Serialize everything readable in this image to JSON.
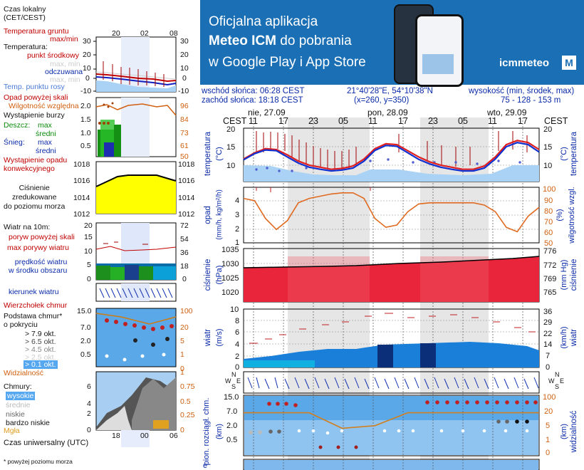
{
  "legend": {
    "local_time": "Czas lokalny\n(CET/CEST)",
    "local_ticks": [
      "20",
      "02",
      "08"
    ],
    "utc_time": "Czas uniwersalny (UTC)",
    "utc_ticks": [
      "18",
      "00",
      "06"
    ],
    "footnote": "* powyżej poziomu morza",
    "soil_temp": "Temperatura gruntu",
    "max_min": "max/min",
    "temperature": "Temperatura:",
    "mid_point": "punkt środkowy",
    "max_min_gray": "max, min",
    "feels": "odczuwana",
    "dew": "Temp. punktu rosy",
    "t_ticks_l": [
      "30",
      "20",
      "10",
      "0",
      "-10"
    ],
    "t_ticks_r": [
      "30",
      "20",
      "10",
      "0",
      "-10"
    ],
    "precip_above": "Opad powyżej skali",
    "rel_hum": "Wilgotność względna",
    "storm": "Wystąpienie burzy",
    "rain": "Deszcz:",
    "snow": "Śnieg:",
    "max": "max",
    "mean": "średni",
    "precip_occ": "Wystąpienie opadu\nkonwekcyjnego",
    "p_ticks_l": [
      "2.0",
      "1.5",
      "1.0",
      "0.5"
    ],
    "h_ticks_r": [
      "96",
      "84",
      "73",
      "61",
      "50"
    ],
    "pressure": "Ciśnienie\nzredukowane\ndo poziomu morza",
    "pr_ticks": [
      "1018",
      "1016",
      "1014",
      "1012"
    ],
    "wind_10m": "Wiatr na 10m:",
    "gust_above": "poryw powyżej skali",
    "max_gust": "max porywy wiatru",
    "mean_wind": "prędkość wiatru\nw środku obszaru",
    "w_ticks_l": [
      "20",
      "15",
      "10",
      "5"
    ],
    "w_ticks_r": [
      "72",
      "54",
      "36",
      "18"
    ],
    "wind_dir": "kierunek wiatru",
    "cloud_top": "Wierzchołek chmur",
    "cloud_base": "Podstawa chmur*\no pokryciu",
    "okt": [
      "> 7.9 okt.",
      "> 6.5 okt.",
      "> 4.5 okt.",
      "> 2.5 okt.",
      "> 0.1 okt."
    ],
    "c_ticks_l": [
      "15.0",
      "7.0",
      "2.0",
      "0.5"
    ],
    "c_ticks_r": [
      "100",
      "20",
      "5",
      "1"
    ],
    "visibility": "Widzialność",
    "clouds": "Chmury:",
    "high": "wysokie",
    "middle": "średnie",
    "low": "niskie",
    "very_low": "bardzo niskie",
    "fog": "Mgła",
    "cl_ticks_l": [
      "6",
      "4",
      "2"
    ],
    "cl_ticks_r": [
      "1",
      "0.75",
      "0.5",
      "0.25"
    ],
    "zero": "0"
  },
  "banner": {
    "line1": "Oficjalna aplikacja",
    "line2a": "Meteo ICM",
    "line2b": " do pobrania",
    "line3": "w Google Play i App Store",
    "logo": "icmmeteo",
    "badge": "M"
  },
  "info": {
    "sunrise": "wschód słońca: 06:28 CEST",
    "sunset": "zachód słońca: 18:18 CEST",
    "coords": "21°40'28\"E, 54°10'38\"N",
    "grid": "(x=260,  y=350)",
    "height_label": "wysokość (min, środek, max)",
    "height_values": "75 - 128 - 153 m"
  },
  "main": {
    "tz": "CEST",
    "days": [
      "nie, 27.09",
      "pon, 28.09",
      "wto, 29.09"
    ],
    "hours": [
      "11",
      "17",
      "23",
      "05",
      "11",
      "17",
      "23",
      "05",
      "11",
      "17"
    ],
    "temp_label": "temperatura",
    "temp_unit": "(°C)",
    "temp_ticks_l": [
      "20",
      "15",
      "10"
    ],
    "temp_ticks_r": [
      "20",
      "15",
      "10"
    ],
    "precip_label": "opad",
    "precip_unit": "(mm/h, kg/m²/h)",
    "precip_ticks": [
      "4",
      "3",
      "2",
      "1",
      "0"
    ],
    "hum_label": "wilgotność wzgl.",
    "hum_unit": "(%)",
    "hum_ticks": [
      "100",
      "90",
      "80",
      "70",
      "60",
      "50"
    ],
    "press_label": "ciśnienie",
    "press_unit": "(hPa)",
    "press_ticks": [
      "1035",
      "1030",
      "1025",
      "1020"
    ],
    "press_label_r": "ciśnienie",
    "press_unit_r": "(mm Hg)",
    "press_ticks_r": [
      "776",
      "772",
      "769",
      "765"
    ],
    "wind_label": "wiatr",
    "wind_unit": "(m/s)",
    "wind_ticks": [
      "10",
      "8",
      "6",
      "4",
      "2",
      "0"
    ],
    "wind_unit_r": "(km/h)",
    "wind_ticks_r": [
      "36",
      "29",
      "22",
      "14",
      "7",
      "0"
    ],
    "compass": {
      "n": "N",
      "w": "W",
      "e": "E",
      "s": "S"
    },
    "cloud_label": "pion. rozciągł. chm.",
    "cloud_unit": "(km)",
    "cloud_ticks": [
      "15.0",
      "7.0",
      "2.0",
      "0.5"
    ],
    "vis_label": "widzialność",
    "vis_unit": "(km)",
    "vis_ticks": [
      "100",
      "20",
      "5",
      "1",
      "0"
    ],
    "left_e": "e"
  },
  "chart_data": [
    {
      "type": "line",
      "title": "temperatura",
      "ylabel": "(°C)",
      "ylim": [
        7,
        20
      ],
      "x": [
        "11",
        "13",
        "15",
        "17",
        "19",
        "21",
        "23",
        "01",
        "03",
        "05",
        "07",
        "09",
        "11",
        "13",
        "15",
        "17",
        "19",
        "21",
        "23",
        "01",
        "03",
        "05",
        "07",
        "09",
        "11",
        "13",
        "15",
        "17"
      ],
      "series": [
        {
          "name": "max",
          "values": [
            12.5,
            14.0,
            15.0,
            14.8,
            13.5,
            12.0,
            11.0,
            10.5,
            10.0,
            10.2,
            10.8,
            12.5,
            15.0,
            16.2,
            16.0,
            14.5,
            13.0,
            11.8,
            11.0,
            10.5,
            10.0,
            10.0,
            10.8,
            13.0,
            16.0,
            17.0,
            16.5,
            14.8
          ]
        },
        {
          "name": "punkt środkowy",
          "values": [
            12.3,
            13.8,
            14.7,
            14.5,
            13.0,
            11.5,
            10.5,
            10.0,
            9.6,
            9.8,
            10.3,
            12.0,
            14.6,
            15.8,
            15.6,
            14.0,
            12.4,
            11.3,
            10.5,
            10.0,
            9.6,
            9.6,
            10.3,
            12.5,
            15.5,
            16.5,
            16.0,
            14.2
          ]
        }
      ]
    },
    {
      "type": "line",
      "title": "opad / wilgotność wzgl.",
      "ylabel": "(%)",
      "ylim": [
        50,
        100
      ],
      "x": [
        "11",
        "13",
        "15",
        "17",
        "19",
        "21",
        "23",
        "01",
        "03",
        "05",
        "07",
        "09",
        "11",
        "13",
        "15",
        "17",
        "19",
        "21",
        "23",
        "01",
        "03",
        "05",
        "07",
        "09",
        "11",
        "13",
        "15",
        "17"
      ],
      "series": [
        {
          "name": "wilgotność wzgl.",
          "values": [
            90,
            88,
            72,
            62,
            70,
            86,
            90,
            92,
            94,
            95,
            95,
            90,
            72,
            64,
            66,
            78,
            85,
            86,
            86,
            86,
            86,
            86,
            84,
            78,
            64,
            60,
            74,
            82
          ]
        }
      ]
    },
    {
      "type": "area",
      "title": "ciśnienie",
      "ylabel": "(hPa)",
      "ylim": [
        1015,
        1035
      ],
      "x": [
        "11",
        "17",
        "23",
        "05",
        "11",
        "17",
        "23",
        "05",
        "11",
        "17"
      ],
      "series": [
        {
          "name": "ciśnienie",
          "values": [
            1029.0,
            1029.4,
            1029.8,
            1030.0,
            1030.4,
            1031.0,
            1031.6,
            1032.0,
            1032.6,
            1033.4
          ]
        }
      ]
    },
    {
      "type": "bar",
      "title": "wiatr",
      "ylabel": "(m/s)",
      "ylim": [
        0,
        10
      ],
      "x": [
        "11",
        "17",
        "23",
        "05",
        "11",
        "17",
        "23",
        "05",
        "11",
        "17"
      ],
      "series": [
        {
          "name": "prędkość wiatru",
          "values": [
            1.5,
            2.0,
            2.6,
            3.4,
            3.5,
            3.9,
            4.2,
            4.2,
            3.8,
            2.8
          ]
        },
        {
          "name": "max porywy wiatru",
          "values": [
            4.0,
            5.2,
            6.2,
            7.2,
            8.5,
            9.2,
            8.8,
            8.4,
            7.8,
            6.5
          ]
        }
      ]
    },
    {
      "type": "line",
      "title": "widzialność",
      "ylabel": "(km)",
      "ylim": [
        0,
        100
      ],
      "x": [
        "11",
        "17",
        "23",
        "05",
        "11",
        "17",
        "23",
        "05",
        "11",
        "17"
      ],
      "series": [
        {
          "name": "widzialność",
          "values": [
            30,
            30,
            30,
            8,
            10,
            30,
            30,
            30,
            30,
            30
          ]
        }
      ]
    }
  ]
}
